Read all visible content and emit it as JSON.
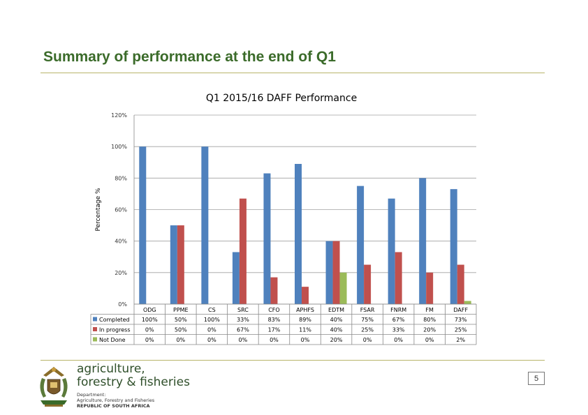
{
  "slide": {
    "title": "Summary of performance at the end of Q1",
    "page_number": "5"
  },
  "logo": {
    "line1": "agriculture,",
    "line2": "forestry & fisheries",
    "small1": "Department:",
    "small2": "Agriculture, Forestry and Fisheries",
    "small3": "REPUBLIC OF SOUTH AFRICA"
  },
  "chart_data": {
    "type": "bar",
    "title": "Q1 2015/16 DAFF Performance",
    "ylabel": "Percentage %",
    "xlabel": "",
    "ylim": [
      0,
      120
    ],
    "yticks": [
      "0%",
      "20%",
      "40%",
      "60%",
      "80%",
      "100%",
      "120%"
    ],
    "grid": true,
    "legend": "table-left",
    "categories": [
      "ODG",
      "PPME",
      "CS",
      "SRC",
      "CFO",
      "APHFS",
      "EDTM",
      "FSAR",
      "FNRM",
      "FM",
      "DAFF"
    ],
    "series": [
      {
        "name": "Completed",
        "color": "#4f81bd",
        "values": [
          100,
          50,
          100,
          33,
          83,
          89,
          40,
          75,
          67,
          80,
          73
        ],
        "labels": [
          "100%",
          "50%",
          "100%",
          "33%",
          "83%",
          "89%",
          "40%",
          "75%",
          "67%",
          "80%",
          "73%"
        ]
      },
      {
        "name": "In progress",
        "color": "#c0504d",
        "values": [
          0,
          50,
          0,
          67,
          17,
          11,
          40,
          25,
          33,
          20,
          25
        ],
        "labels": [
          "0%",
          "50%",
          "0%",
          "67%",
          "17%",
          "11%",
          "40%",
          "25%",
          "33%",
          "20%",
          "25%"
        ]
      },
      {
        "name": "Not Done",
        "color": "#9bbb59",
        "values": [
          0,
          0,
          0,
          0,
          0,
          0,
          20,
          0,
          0,
          0,
          2
        ],
        "labels": [
          "0%",
          "0%",
          "0%",
          "0%",
          "0%",
          "0%",
          "20%",
          "0%",
          "0%",
          "0%",
          "2%"
        ]
      }
    ]
  }
}
